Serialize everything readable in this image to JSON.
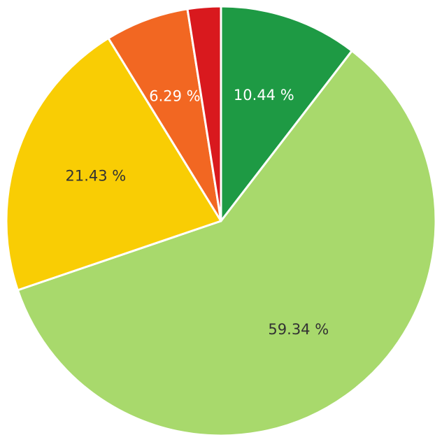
{
  "chart_data": {
    "type": "pie",
    "title": "",
    "start": "12 o'clock",
    "direction": "clockwise",
    "legend": "none",
    "series": [
      {
        "value": 10.44,
        "label": "10.44 %",
        "color": "#1e9a44",
        "label_color": "#ffffff"
      },
      {
        "value": 59.34,
        "label": "59.34 %",
        "color": "#a8d96c",
        "label_color": "#333333"
      },
      {
        "value": 21.43,
        "label": "21.43 %",
        "color": "#f9cd04",
        "label_color": "#333333"
      },
      {
        "value": 6.29,
        "label": "6.29 %",
        "color": "#f26722",
        "label_color": "#ffffff"
      },
      {
        "value": 2.5,
        "label": "",
        "color": "#d9191e",
        "label_color": "#ffffff"
      }
    ]
  }
}
